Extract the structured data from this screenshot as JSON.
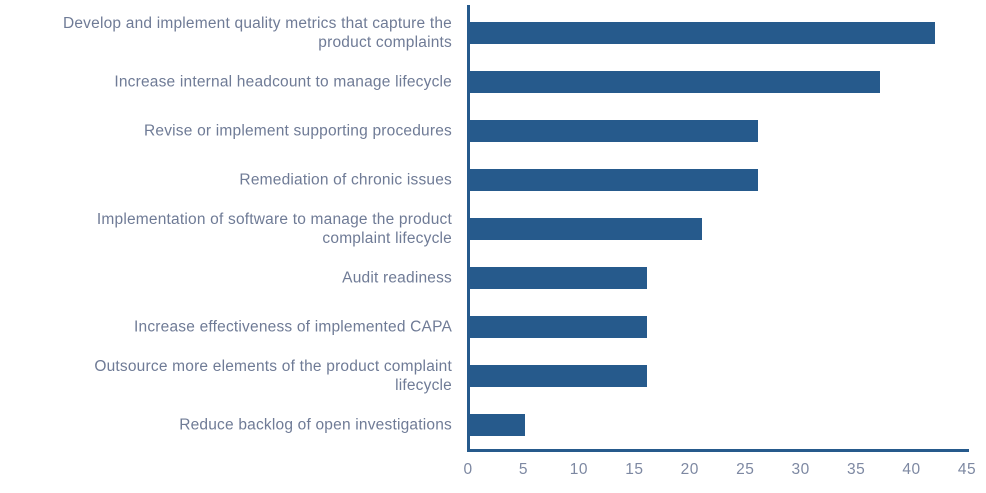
{
  "chart_data": {
    "type": "bar",
    "orientation": "horizontal",
    "title": "",
    "xlabel": "",
    "ylabel": "",
    "categories": [
      "Develop and implement quality metrics that capture the\nproduct complaints",
      "Increase internal headcount to manage lifecycle",
      "Revise or implement supporting procedures",
      "Remediation of chronic issues",
      "Implementation of software to manage the product\ncomplaint lifecycle",
      "Audit readiness",
      "Increase effectiveness of implemented CAPA",
      "Outsource more elements of the product complaint\nlifecycle",
      "Reduce backlog of open investigations"
    ],
    "values": [
      42,
      37,
      26,
      26,
      21,
      16,
      16,
      16,
      5
    ],
    "xlim": [
      0,
      45
    ],
    "xticks": [
      0,
      5,
      10,
      15,
      20,
      25,
      30,
      35,
      40,
      45
    ],
    "grid": false,
    "legend": false,
    "colors": {
      "bar": "#265a8c",
      "axis": "#265a8c",
      "category_label": "#6f7b96",
      "tick_label": "#7d88a2",
      "background": "#ffffff"
    }
  }
}
